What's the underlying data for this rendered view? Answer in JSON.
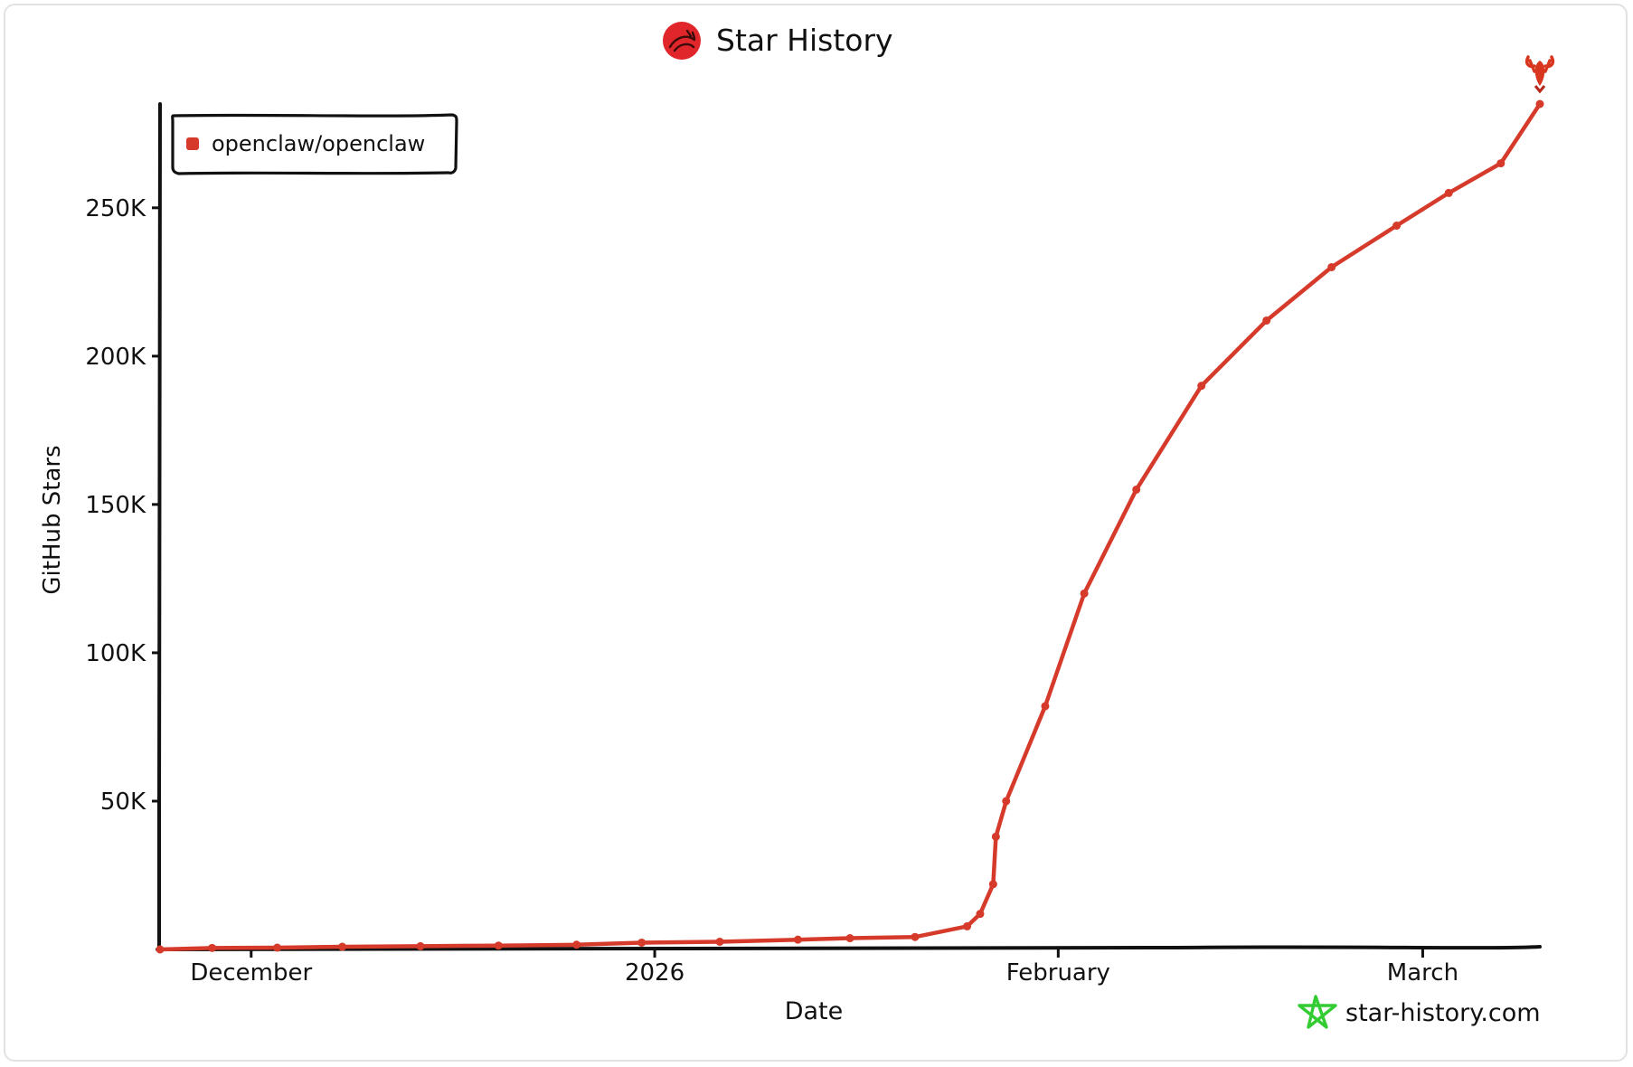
{
  "title": "Star History",
  "watermark": "star-history.com",
  "colors": {
    "series": "#d53a2a",
    "axis": "#111111",
    "logo_bg": "#e0262a",
    "watermark_icon": "#33cc33"
  },
  "icons": {
    "title_logo": "lobster-logo-icon",
    "end_marker": "lobster-emoji-icon",
    "watermark": "star-outline-icon"
  },
  "chart_data": {
    "type": "line",
    "title": "Star History",
    "xlabel": "Date",
    "ylabel": "GitHub Stars",
    "x_ticks": [
      "December",
      "2026",
      "February",
      "March"
    ],
    "x_tick_dates": [
      "2025-12-01",
      "2026-01-01",
      "2026-02-01",
      "2026-03-01"
    ],
    "y_ticks": [
      50000,
      100000,
      150000,
      200000,
      250000
    ],
    "y_tick_labels": [
      "50K",
      "100K",
      "150K",
      "200K",
      "250K"
    ],
    "ylim": [
      0,
      285000
    ],
    "xlim": [
      "2025-11-24",
      "2026-03-10"
    ],
    "legend": "top-left",
    "grid": false,
    "series": [
      {
        "name": "openclaw/openclaw",
        "points": [
          [
            "2025-11-24",
            0
          ],
          [
            "2025-11-28",
            500
          ],
          [
            "2025-12-03",
            600
          ],
          [
            "2025-12-08",
            900
          ],
          [
            "2025-12-14",
            1100
          ],
          [
            "2025-12-20",
            1300
          ],
          [
            "2025-12-26",
            1600
          ],
          [
            "2025-12-31",
            2300
          ],
          [
            "2026-01-06",
            2600
          ],
          [
            "2026-01-12",
            3300
          ],
          [
            "2026-01-16",
            3800
          ],
          [
            "2026-01-21",
            4200
          ],
          [
            "2026-01-25",
            7800
          ],
          [
            "2026-01-26",
            12000
          ],
          [
            "2026-01-27",
            22000
          ],
          [
            "2026-01-27",
            38000
          ],
          [
            "2026-01-28",
            50000
          ],
          [
            "2026-01-31",
            82000
          ],
          [
            "2026-02-03",
            120000
          ],
          [
            "2026-02-07",
            155000
          ],
          [
            "2026-02-12",
            190000
          ],
          [
            "2026-02-17",
            212000
          ],
          [
            "2026-02-22",
            230000
          ],
          [
            "2026-02-27",
            244000
          ],
          [
            "2026-03-03",
            255000
          ],
          [
            "2026-03-07",
            265000
          ],
          [
            "2026-03-10",
            285000
          ]
        ]
      }
    ]
  }
}
